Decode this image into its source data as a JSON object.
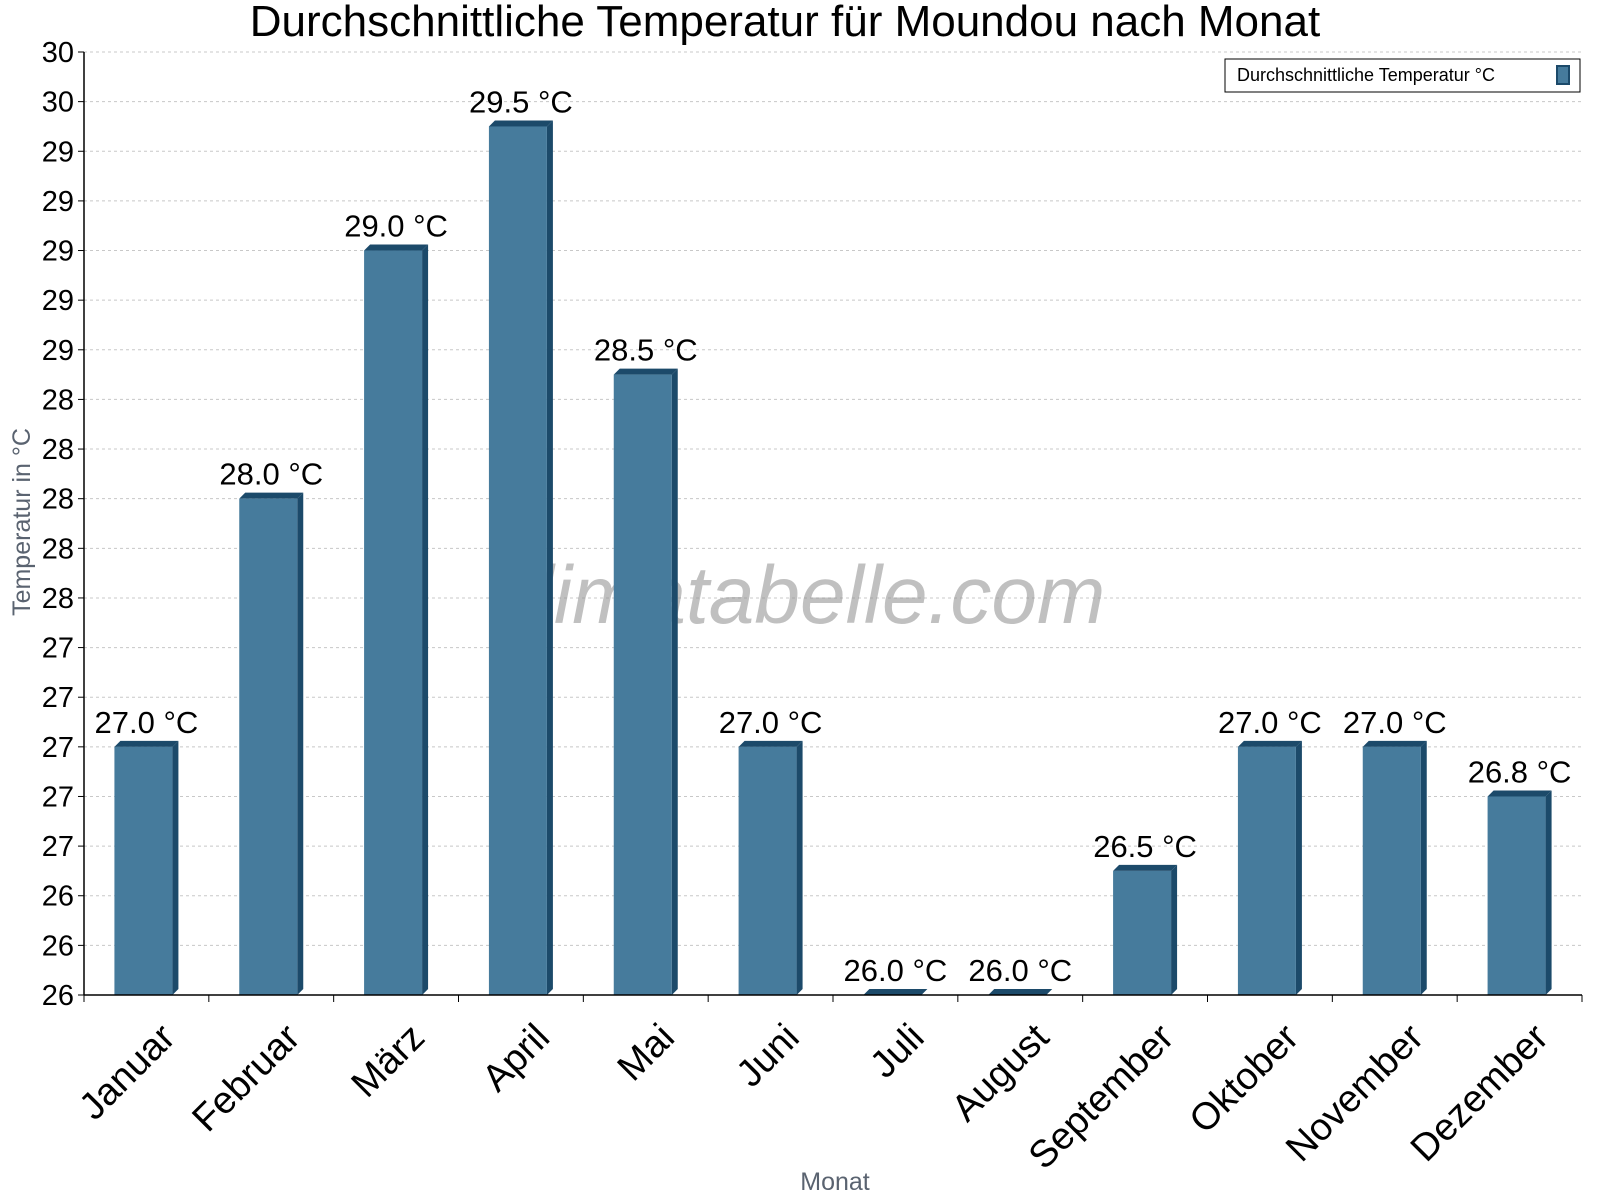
{
  "chart_data": {
    "type": "bar",
    "title": "Durchschnittliche Temperatur für Moundou nach Monat",
    "xlabel": "Monat",
    "ylabel": "Temperatur in °C",
    "categories": [
      "Januar",
      "Februar",
      "März",
      "April",
      "Mai",
      "Juni",
      "Juli",
      "August",
      "September",
      "Oktober",
      "November",
      "Dezember"
    ],
    "series": [
      {
        "name": "Durchschnittliche Temperatur °C",
        "values": [
          27.0,
          28.0,
          29.0,
          29.5,
          28.5,
          27.0,
          26.0,
          26.0,
          26.5,
          27.0,
          27.0,
          26.8
        ],
        "data_labels": [
          "27.0 °C",
          "28.0 °C",
          "29.0 °C",
          "29.5 °C",
          "28.5 °C",
          "27.0 °C",
          "26.0 °C",
          "26.0 °C",
          "26.5 °C",
          "27.0 °C",
          "27.0 °C",
          "26.8 °C"
        ]
      }
    ],
    "ylim": [
      26,
      29.8
    ],
    "y_tick_values": [
      26.0,
      26.2,
      26.4,
      26.6,
      26.8,
      27.0,
      27.2,
      27.4,
      27.6,
      27.8,
      28.0,
      28.2,
      28.4,
      28.6,
      28.8,
      29.0,
      29.2,
      29.4,
      29.6,
      29.8
    ],
    "y_tick_labels": [
      "26",
      "26",
      "26",
      "27",
      "27",
      "27",
      "27",
      "27",
      "28",
      "28",
      "28",
      "28",
      "28",
      "29",
      "29",
      "29",
      "29",
      "29",
      "30",
      "30"
    ],
    "grid": true,
    "legend_position": "top-right",
    "bar_color": "#467b9c",
    "bar_dark_color": "#1c4a6a",
    "grid_color": "#c8c8c8",
    "watermark": "klimatabelle.com"
  }
}
